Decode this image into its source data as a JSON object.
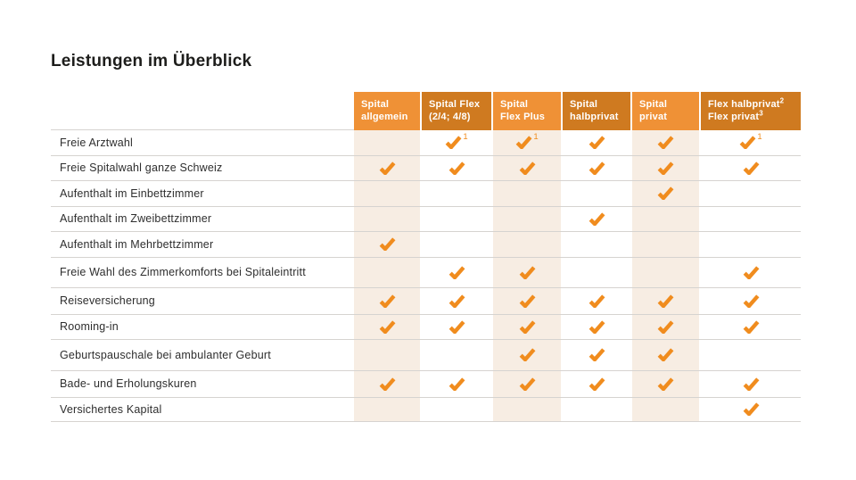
{
  "page": {
    "title": "Leistungen im Überblick"
  },
  "colors": {
    "header_light": "#EF9136",
    "header_dark": "#CF7A20",
    "check": "#F08C1E",
    "stripe_beige": "#F7EDE3",
    "separator": "#D6D3D0",
    "text": "#2E2E2E"
  },
  "table": {
    "columns": [
      {
        "lines": [
          "Spital",
          "allgemein"
        ],
        "sups": [
          "",
          ""
        ],
        "shade": "light"
      },
      {
        "lines": [
          "Spital Flex",
          "(2/4; 4/8)"
        ],
        "sups": [
          "",
          ""
        ],
        "shade": "dark"
      },
      {
        "lines": [
          "Spital",
          "Flex Plus"
        ],
        "sups": [
          "",
          ""
        ],
        "shade": "light"
      },
      {
        "lines": [
          "Spital",
          "halbprivat"
        ],
        "sups": [
          "",
          ""
        ],
        "shade": "dark"
      },
      {
        "lines": [
          "Spital",
          "privat"
        ],
        "sups": [
          "",
          ""
        ],
        "shade": "light"
      },
      {
        "lines": [
          "Flex halbprivat",
          "Flex privat"
        ],
        "sups": [
          "2",
          "3"
        ],
        "shade": "dark"
      }
    ],
    "rows": [
      {
        "label": "Freie Arztwahl",
        "cells": [
          "",
          "check+1",
          "check+1",
          "check",
          "check",
          "check+1"
        ]
      },
      {
        "label": "Freie Spitalwahl ganze Schweiz",
        "cells": [
          "check",
          "check",
          "check",
          "check",
          "check",
          "check"
        ]
      },
      {
        "label": "Aufenthalt im Einbettzimmer",
        "cells": [
          "",
          "",
          "",
          "",
          "check",
          ""
        ]
      },
      {
        "label": "Aufenthalt im Zweibettzimmer",
        "cells": [
          "",
          "",
          "",
          "check",
          "",
          ""
        ]
      },
      {
        "label": "Aufenthalt im Mehrbettzimmer",
        "cells": [
          "check",
          "",
          "",
          "",
          "",
          ""
        ]
      },
      {
        "label": "Freie Wahl des Zimmerkomforts bei Spitaleintritt",
        "cells": [
          "",
          "check",
          "check",
          "",
          "",
          "check"
        ]
      },
      {
        "label": "Reiseversicherung",
        "cells": [
          "check",
          "check",
          "check",
          "check",
          "check",
          "check"
        ]
      },
      {
        "label": "Rooming-in",
        "cells": [
          "check",
          "check",
          "check",
          "check",
          "check",
          "check"
        ]
      },
      {
        "label": "Geburtspauschale bei ambulanter Geburt",
        "cells": [
          "",
          "",
          "check",
          "check",
          "check",
          ""
        ]
      },
      {
        "label": "Bade- und Erholungskuren",
        "cells": [
          "check",
          "check",
          "check",
          "check",
          "check",
          "check"
        ]
      },
      {
        "label": "Versichertes Kapital",
        "cells": [
          "",
          "",
          "",
          "",
          "",
          "check"
        ]
      }
    ]
  }
}
